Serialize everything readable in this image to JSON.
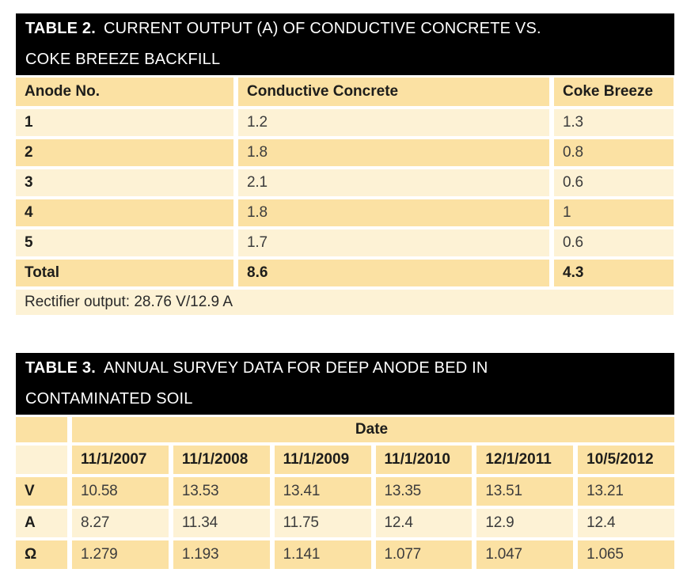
{
  "colors": {
    "title_bg": "#000000",
    "title_fg": "#ffffff",
    "row_tan": "#fbe1a3",
    "row_cream": "#fdf2d5"
  },
  "table2": {
    "title_label": "TABLE 2.",
    "title_line1": "CURRENT OUTPUT (A) OF CONDUCTIVE CONCRETE VS.",
    "title_line2": "COKE BREEZE BACKFILL",
    "columns": [
      "Anode No.",
      "Conductive Concrete",
      "Coke Breeze"
    ],
    "rows": [
      {
        "anode": "1",
        "conductive_concrete": "1.2",
        "coke_breeze": "1.3"
      },
      {
        "anode": "2",
        "conductive_concrete": "1.8",
        "coke_breeze": "0.8"
      },
      {
        "anode": "3",
        "conductive_concrete": "2.1",
        "coke_breeze": "0.6"
      },
      {
        "anode": "4",
        "conductive_concrete": "1.8",
        "coke_breeze": "1"
      },
      {
        "anode": "5",
        "conductive_concrete": "1.7",
        "coke_breeze": "0.6"
      },
      {
        "anode": "Total",
        "conductive_concrete": "8.6",
        "coke_breeze": "4.3"
      }
    ],
    "footer": "Rectifier output: 28.76 V/12.9 A"
  },
  "table3": {
    "title_label": "TABLE 3.",
    "title_line1": "ANNUAL SURVEY DATA FOR DEEP ANODE BED IN",
    "title_line2": "CONTAMINATED SOIL",
    "date_group_header": "Date",
    "date_columns": [
      "11/1/2007",
      "11/1/2008",
      "11/1/2009",
      "11/1/2010",
      "12/1/2011",
      "10/5/2012"
    ],
    "rows": [
      {
        "label": "V",
        "values": [
          "10.58",
          "13.53",
          "13.41",
          "13.35",
          "13.51",
          "13.21"
        ]
      },
      {
        "label": "A",
        "values": [
          "8.27",
          "11.34",
          "11.75",
          "12.4",
          "12.9",
          "12.4"
        ]
      },
      {
        "label": "Ω",
        "values": [
          "1.279",
          "1.193",
          "1.141",
          "1.077",
          "1.047",
          "1.065"
        ]
      }
    ]
  }
}
